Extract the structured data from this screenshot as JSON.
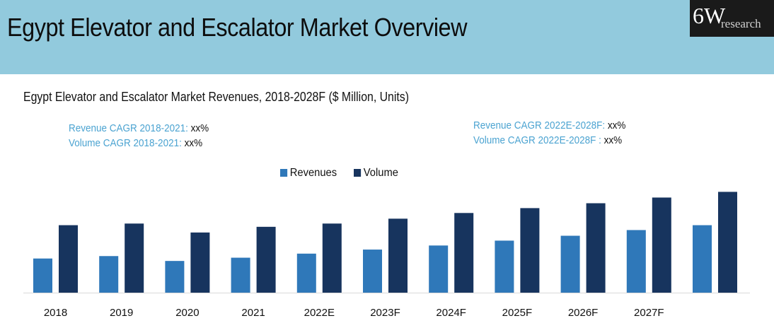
{
  "header": {
    "title": "Egypt Elevator and Escalator Market Overview",
    "logo_main": "6W",
    "logo_sub": "research"
  },
  "cagr": {
    "left": [
      {
        "label": "Revenue CAGR 2018-2021:",
        "value": "xx%"
      },
      {
        "label": "Volume CAGR 2018-2021:",
        "value": "xx%"
      }
    ],
    "right": [
      {
        "label": "Revenue CAGR 2022E-2028F:",
        "value": "xx%"
      },
      {
        "label": "Volume CAGR 2022E-2028F :",
        "value": "xx%"
      }
    ]
  },
  "colors": {
    "revenues": "#2f78b9",
    "volume": "#17345e",
    "header_bg": "#92cadd",
    "cagr_label": "#4ba3d1"
  },
  "chart_data": {
    "type": "bar",
    "title": "Egypt Elevator and Escalator Market Revenues, 2018-2028F ($ Million, Units)",
    "categories": [
      "2018",
      "2019",
      "2020",
      "2021",
      "2022E",
      "2023F",
      "2024F",
      "2025F",
      "2026F",
      "2027F",
      ""
    ],
    "series": [
      {
        "name": "Revenues",
        "values": [
          42,
          45,
          39,
          43,
          48,
          53,
          58,
          64,
          70,
          77,
          83
        ]
      },
      {
        "name": "Volume",
        "values": [
          83,
          85,
          74,
          81,
          85,
          91,
          98,
          104,
          110,
          117,
          124
        ]
      }
    ],
    "ylim": [
      0,
      160
    ],
    "xlabel": "",
    "ylabel": "",
    "legend": "top-center"
  }
}
